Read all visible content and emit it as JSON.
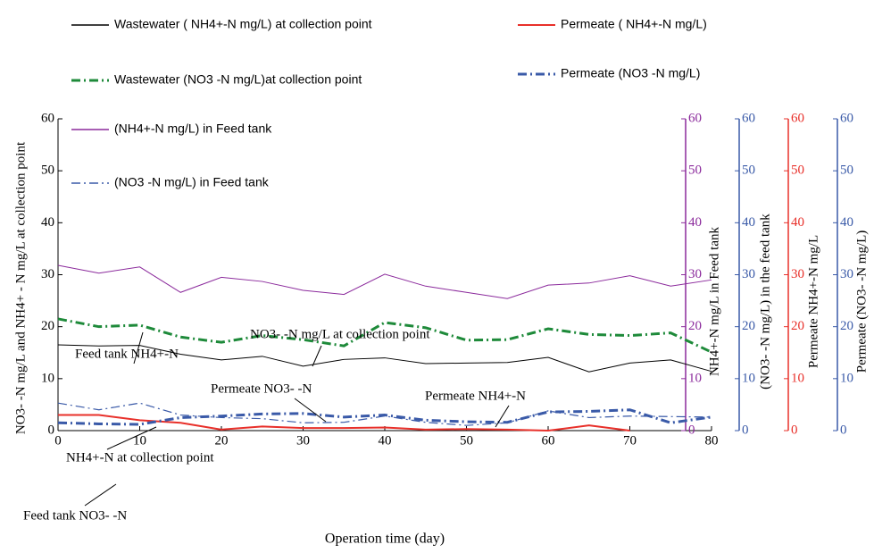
{
  "chart_data": {
    "type": "line",
    "x_label": "Operation time (day)",
    "xlim": [
      0,
      80
    ],
    "xticks": [
      0,
      10,
      20,
      30,
      40,
      50,
      60,
      70,
      80
    ],
    "x": [
      0,
      5,
      10,
      15,
      20,
      25,
      30,
      35,
      40,
      45,
      50,
      55,
      60,
      65,
      70,
      75,
      80
    ],
    "y_axes": [
      {
        "label": "NO3- -N mg/L and NH4+ - N mg/L at collection point",
        "color": "#000000",
        "lim": [
          0,
          60
        ],
        "ticks": [
          0,
          10,
          20,
          30,
          40,
          50,
          60
        ]
      },
      {
        "label": "NH4+-N mg/L in Feed tank",
        "color": "#8b2a9c",
        "lim": [
          0,
          60
        ],
        "ticks": [
          0,
          10,
          20,
          30,
          40,
          50,
          60
        ]
      },
      {
        "label": "(NO3- -N mg/L) in the feed tank",
        "color": "#3a5aa8",
        "lim": [
          0,
          60
        ],
        "ticks": [
          0,
          10,
          20,
          30,
          40,
          50,
          60
        ]
      },
      {
        "label": "Permeate NH4+-N mg/L",
        "color": "#e8302a",
        "lim": [
          0,
          60
        ],
        "ticks": [
          0,
          10,
          20,
          30,
          40,
          50,
          60
        ]
      },
      {
        "label": "Permeate (NO3- -N mg/L)",
        "color": "#3a5aa8",
        "lim": [
          0,
          60
        ],
        "ticks": [
          0,
          10,
          20,
          30,
          40,
          50,
          60
        ]
      }
    ],
    "series": [
      {
        "name": "Wastewater ( NH4+-N mg/L) at collection point",
        "color": "#000000",
        "style": "solid",
        "width": 1,
        "axis": 0,
        "values": [
          16.5,
          16.3,
          16.4,
          14.7,
          13.6,
          14.3,
          12.4,
          13.7,
          14,
          12.9,
          13,
          13.1,
          14.1,
          11.3,
          13,
          13.6,
          11.4
        ]
      },
      {
        "name": "Permeate ( NH4+-N mg/L)",
        "color": "#e8302a",
        "style": "solid",
        "width": 2,
        "axis": 3,
        "values": [
          3,
          3,
          2,
          1.5,
          0.2,
          0.8,
          0.5,
          0.5,
          0.6,
          0.2,
          0.3,
          0.2,
          0,
          1,
          0,
          null,
          null
        ]
      },
      {
        "name": "Wastewater (NO3 -N mg/L)at collection point",
        "color": "#1e8a3a",
        "style": "dashdot",
        "width": 3,
        "axis": 0,
        "values": [
          21.5,
          20,
          20.3,
          18,
          17,
          18.3,
          17.5,
          16.3,
          20.8,
          19.8,
          17.4,
          17.5,
          19.6,
          18.5,
          18.3,
          18.8,
          15.1
        ]
      },
      {
        "name": "Permeate (NO3 -N mg/L)",
        "color": "#3a5aa8",
        "style": "dashdot",
        "width": 3,
        "axis": 4,
        "values": [
          1.5,
          1.3,
          1.2,
          2.5,
          2.8,
          3.2,
          3.3,
          2.6,
          3,
          2,
          1.7,
          1.6,
          3.6,
          3.7,
          4,
          1.5,
          2.6
        ]
      },
      {
        "name": "(NH4+-N mg/L) in Feed tank",
        "color": "#8b2a9c",
        "style": "solid",
        "width": 1,
        "axis": 1,
        "values": [
          31.8,
          30.3,
          31.5,
          26.6,
          29.5,
          28.7,
          27,
          26.2,
          30.1,
          27.8,
          26.6,
          25.4,
          28,
          28.4,
          29.8,
          27.8,
          29
        ]
      },
      {
        "name": "(NO3 -N mg/L) in Feed tank",
        "color": "#3a5aa8",
        "style": "dashdot",
        "width": 1.2,
        "axis": 2,
        "values": [
          5.3,
          4,
          5.3,
          3,
          2.5,
          2.3,
          1.5,
          1.6,
          2.8,
          1.6,
          1,
          1.5,
          3.8,
          2.5,
          2.8,
          2.7,
          2.6
        ]
      }
    ],
    "annotations": [
      "Feed tank NH4+-N",
      "NO3- -N mg/L at collection point",
      "NH4+-N at collection point",
      "Permeate NO3- -N",
      "Permeate NH4+-N",
      "Feed tank NO3- -N"
    ]
  }
}
